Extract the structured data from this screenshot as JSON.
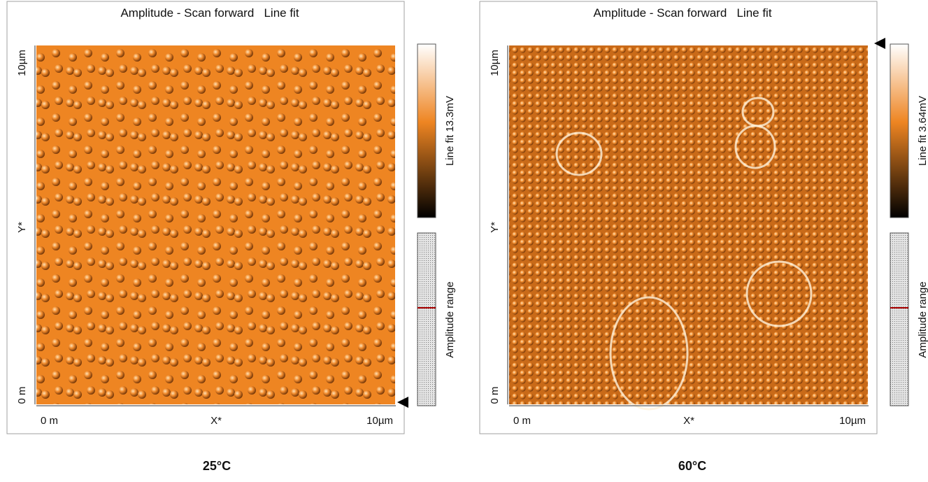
{
  "panels": [
    {
      "title": "Amplitude - Scan forward   Line fit",
      "y_labels": [
        "10µm",
        "Y*",
        "0 m"
      ],
      "x_labels": [
        "0 m",
        "X*",
        "10µm"
      ],
      "colorbar_label": "Line fit 13.3mV",
      "range_label": "Amplitude range",
      "caption": "25°C"
    },
    {
      "title": "Amplitude - Scan forward   Line fit",
      "y_labels": [
        "10µm",
        "Y*",
        "0 m"
      ],
      "x_labels": [
        "0 m",
        "X*",
        "10µm"
      ],
      "colorbar_label": "Line fit 3.64mV",
      "range_label": "Amplitude range",
      "caption": "60°C"
    }
  ]
}
